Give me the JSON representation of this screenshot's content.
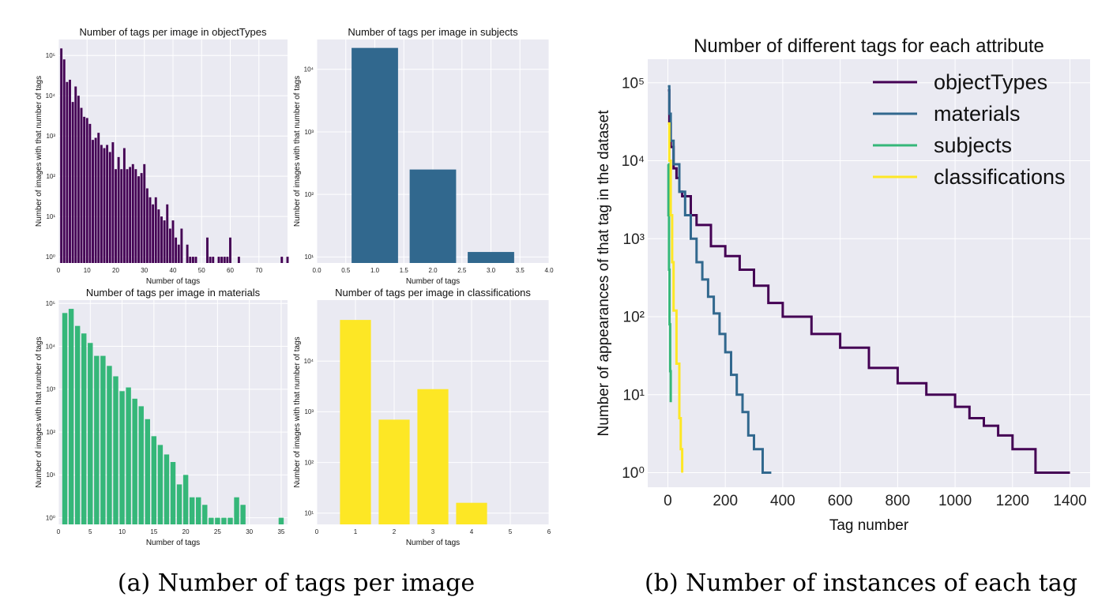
{
  "captions": {
    "a": "(a) Number of tags per image",
    "b": "(b) Number of instances of each tag"
  },
  "chart_data": [
    {
      "id": "objectTypes",
      "type": "bar",
      "title": "Number of tags per image in objectTypes",
      "xlabel": "Number of tags",
      "ylabel": "Number of images with that number of tags",
      "color": "#440154",
      "yscale": "log",
      "xlim": [
        0,
        80
      ],
      "ylim": [
        0.7,
        250000
      ],
      "xticks": [
        0,
        10,
        20,
        30,
        40,
        50,
        60,
        70
      ],
      "yticks": [
        1,
        10,
        100,
        1000,
        10000,
        100000
      ],
      "ytick_labels": [
        "10⁰",
        "10¹",
        "10²",
        "10³",
        "10⁴",
        "10⁵"
      ],
      "bar_width": 0.8,
      "x": [
        1,
        2,
        3,
        4,
        5,
        6,
        7,
        8,
        9,
        10,
        11,
        12,
        13,
        14,
        15,
        16,
        17,
        18,
        19,
        20,
        21,
        22,
        23,
        24,
        25,
        26,
        27,
        28,
        29,
        30,
        31,
        32,
        33,
        34,
        35,
        36,
        37,
        38,
        39,
        40,
        41,
        42,
        43,
        45,
        46,
        47,
        48,
        52,
        53,
        54,
        56,
        57,
        58,
        59,
        60,
        63,
        78,
        80
      ],
      "values": [
        150000,
        80000,
        22000,
        25000,
        7000,
        17000,
        10000,
        5000,
        3000,
        2800,
        2000,
        800,
        900,
        1200,
        600,
        500,
        600,
        400,
        700,
        150,
        300,
        150,
        500,
        150,
        170,
        200,
        150,
        100,
        120,
        200,
        50,
        30,
        20,
        30,
        15,
        10,
        8,
        20,
        5,
        8,
        3,
        2,
        5,
        2,
        1,
        1,
        1,
        3,
        1,
        1,
        1,
        1,
        1,
        1,
        3,
        1,
        1,
        1
      ]
    },
    {
      "id": "subjects",
      "type": "bar",
      "title": "Number of tags per image in subjects",
      "xlabel": "Number of tags",
      "ylabel": "Number of images with that number of tags",
      "color": "#31688e",
      "yscale": "log",
      "xlim": [
        0,
        4
      ],
      "ylim": [
        8,
        30000
      ],
      "xticks": [
        0,
        0.5,
        1,
        1.5,
        2,
        2.5,
        3,
        3.5,
        4
      ],
      "xtick_labels": [
        "0.0",
        "0.5",
        "1.0",
        "1.5",
        "2.0",
        "2.5",
        "3.0",
        "3.5",
        "4.0"
      ],
      "yticks": [
        10,
        100,
        1000,
        10000
      ],
      "ytick_labels": [
        "10¹",
        "10²",
        "10³",
        "10⁴"
      ],
      "bar_width": 0.8,
      "x": [
        1,
        2,
        3
      ],
      "values": [
        22000,
        250,
        12
      ]
    },
    {
      "id": "materials",
      "type": "bar",
      "title": "Number of tags per image in materials",
      "xlabel": "Number of tags",
      "ylabel": "Number of images with that number of tags",
      "color": "#35b779",
      "yscale": "log",
      "xlim": [
        0,
        36
      ],
      "ylim": [
        0.7,
        120000
      ],
      "xticks": [
        0,
        5,
        10,
        15,
        20,
        25,
        30,
        35
      ],
      "yticks": [
        1,
        10,
        100,
        1000,
        10000,
        100000
      ],
      "ytick_labels": [
        "10⁰",
        "10¹",
        "10²",
        "10³",
        "10⁴",
        "10⁵"
      ],
      "bar_width": 0.8,
      "x": [
        1,
        2,
        3,
        4,
        5,
        6,
        7,
        8,
        9,
        10,
        11,
        12,
        13,
        14,
        15,
        16,
        17,
        18,
        19,
        20,
        21,
        22,
        23,
        24,
        25,
        26,
        27,
        28,
        29,
        35
      ],
      "values": [
        60000,
        75000,
        30000,
        20000,
        12000,
        6000,
        6000,
        3500,
        2000,
        900,
        1100,
        600,
        400,
        200,
        80,
        50,
        30,
        20,
        6,
        10,
        3,
        3,
        2,
        1,
        1,
        1,
        1,
        3,
        2,
        1
      ]
    },
    {
      "id": "classifications",
      "type": "bar",
      "title": "Number of tags per image in classifications",
      "xlabel": "Number of tags",
      "ylabel": "Number of images with that number of tags",
      "color": "#fde725",
      "yscale": "log",
      "xlim": [
        0,
        6
      ],
      "ylim": [
        6,
        160000
      ],
      "xticks": [
        0,
        1,
        2,
        3,
        4,
        5,
        6
      ],
      "yticks": [
        10,
        100,
        1000,
        10000
      ],
      "ytick_labels": [
        "10¹",
        "10²",
        "10³",
        "10⁴"
      ],
      "bar_width": 0.8,
      "x": [
        1,
        2,
        3,
        4,
        5
      ],
      "values": [
        65000,
        700,
        2800,
        16,
        6
      ]
    },
    {
      "id": "instances",
      "type": "line",
      "title": "Number of different tags for each attribute",
      "xlabel": "Tag number",
      "ylabel": "Number of appearances of that tag in the dataset",
      "yscale": "log",
      "xlim": [
        -70,
        1470
      ],
      "ylim": [
        0.65,
        200000
      ],
      "xticks": [
        0,
        200,
        400,
        600,
        800,
        1000,
        1200,
        1400
      ],
      "yticks": [
        1,
        10,
        100,
        1000,
        10000,
        100000
      ],
      "ytick_labels": [
        "10⁰",
        "10¹",
        "10²",
        "10³",
        "10⁴",
        "10⁵"
      ],
      "legend": "upper-right",
      "series": [
        {
          "name": "objectTypes",
          "color": "#440154",
          "x": [
            0,
            5,
            10,
            20,
            30,
            40,
            50,
            80,
            100,
            150,
            200,
            250,
            300,
            350,
            400,
            500,
            600,
            700,
            800,
            900,
            1000,
            1050,
            1100,
            1150,
            1200,
            1250,
            1275,
            1280,
            1400
          ],
          "y": [
            80000,
            30000,
            15000,
            8000,
            6000,
            4000,
            3500,
            2000,
            1500,
            800,
            600,
            400,
            250,
            150,
            100,
            60,
            40,
            22,
            14,
            10,
            7,
            5,
            4,
            3,
            2,
            2,
            2,
            1,
            1
          ]
        },
        {
          "name": "materials",
          "color": "#31688e",
          "x": [
            0,
            5,
            10,
            20,
            40,
            60,
            80,
            100,
            120,
            140,
            160,
            180,
            200,
            220,
            240,
            260,
            280,
            300,
            320,
            330,
            340,
            360
          ],
          "y": [
            90000,
            40000,
            18000,
            9000,
            4000,
            2000,
            1000,
            500,
            300,
            180,
            110,
            60,
            35,
            18,
            10,
            6,
            3,
            2,
            2,
            1,
            1,
            1
          ]
        },
        {
          "name": "subjects",
          "color": "#35b779",
          "x": [
            0,
            2,
            4,
            6,
            8,
            10
          ],
          "y": [
            9000,
            2000,
            400,
            80,
            20,
            8
          ]
        },
        {
          "name": "classifications",
          "color": "#fde725",
          "x": [
            0,
            5,
            10,
            15,
            20,
            30,
            40,
            45,
            50
          ],
          "y": [
            30000,
            10000,
            2000,
            500,
            120,
            25,
            5,
            2,
            1
          ]
        }
      ]
    }
  ]
}
